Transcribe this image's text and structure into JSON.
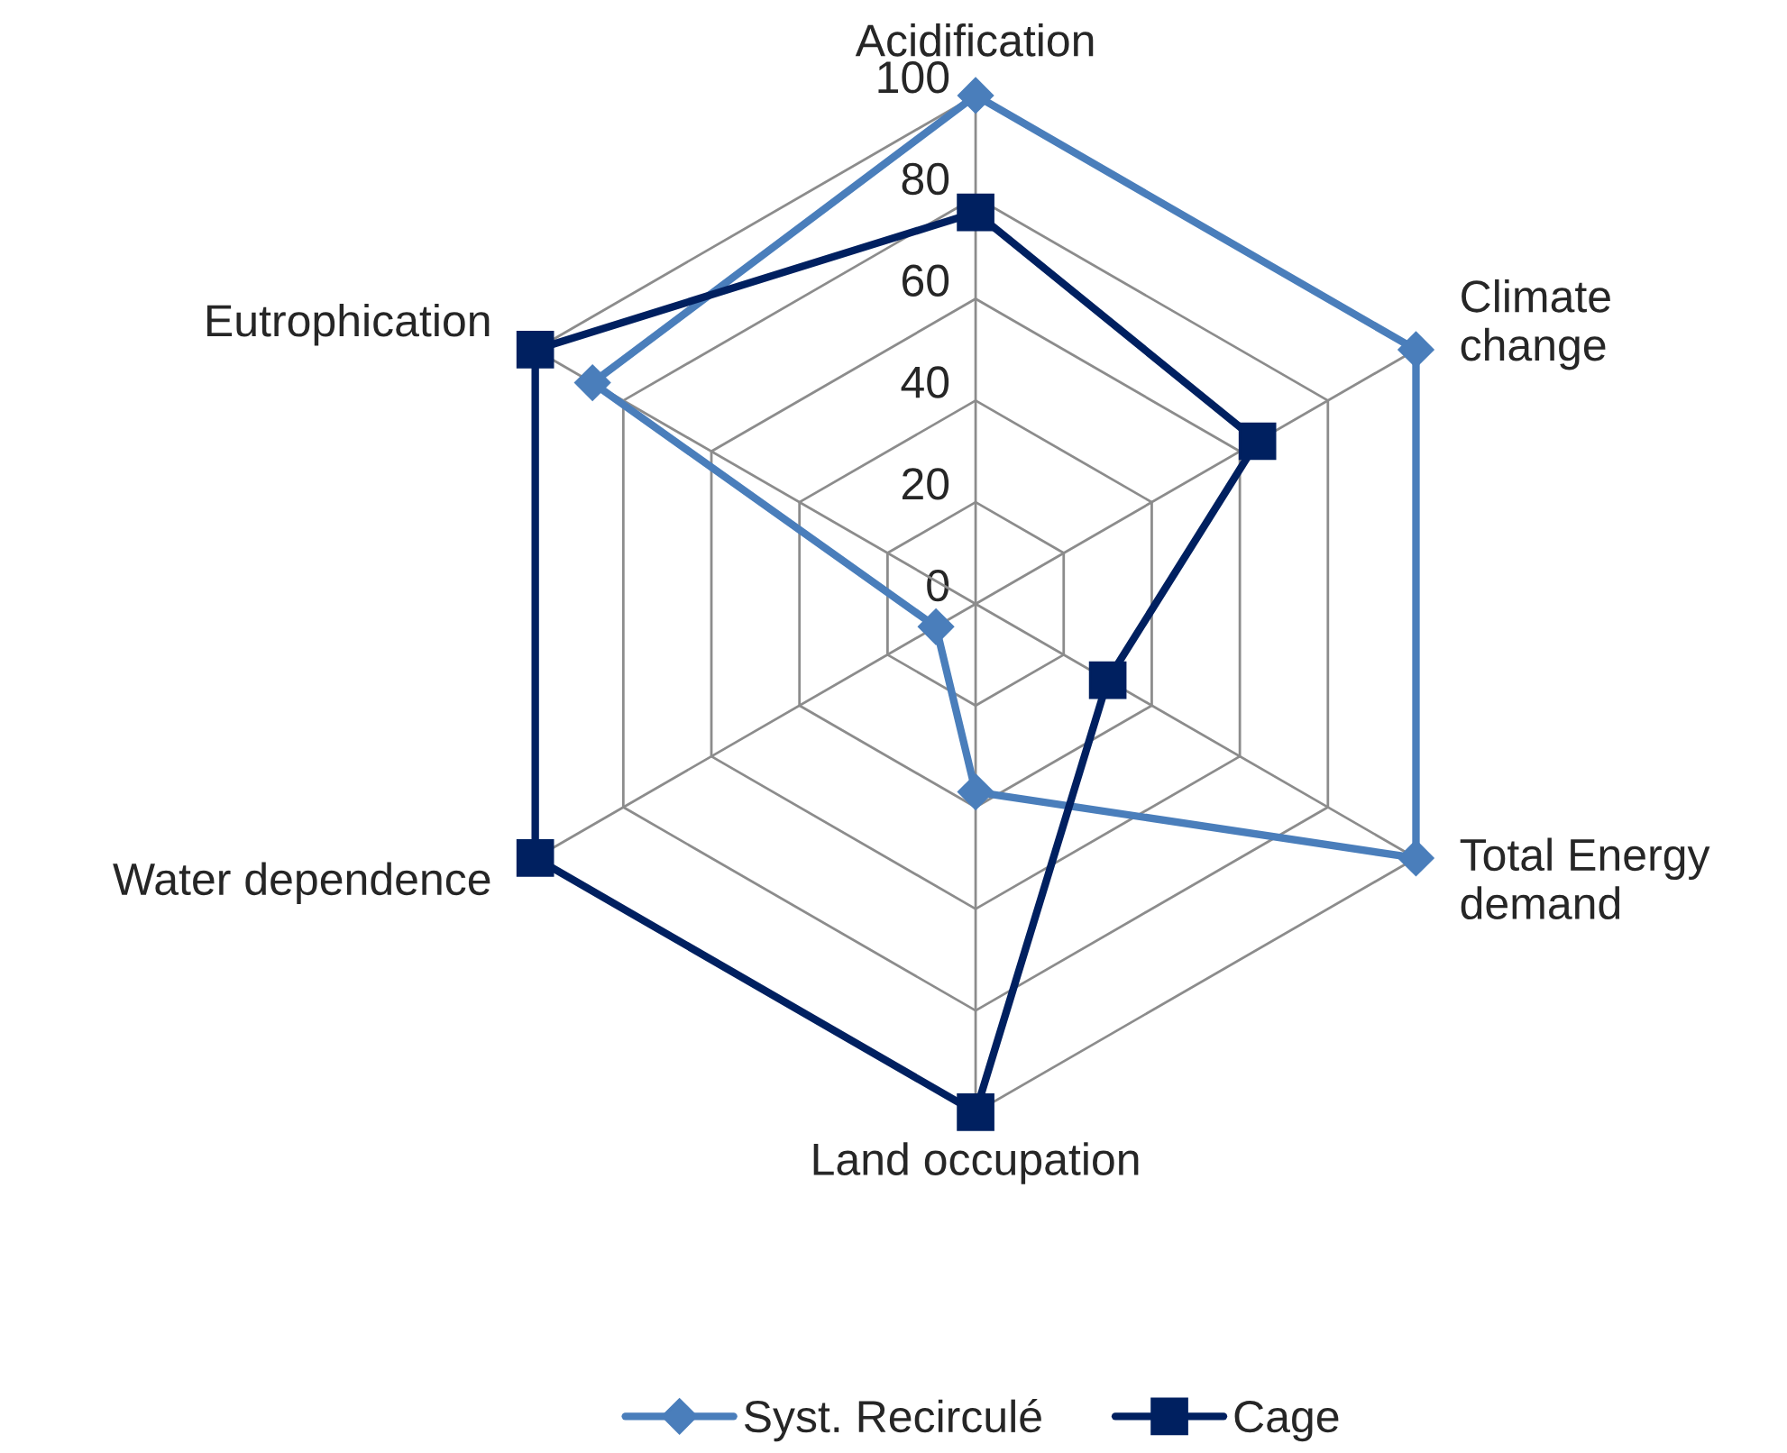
{
  "chart_data": {
    "type": "radar",
    "categories": [
      "Acidification",
      "Climate change",
      "Total Energy demand",
      "Land occupation",
      "Water dependence",
      "Eutrophication"
    ],
    "series": [
      {
        "name": "Syst. Recirculé",
        "color": "#4a7ebb",
        "marker": "diamond",
        "values": [
          100,
          100,
          100,
          37,
          9,
          87
        ]
      },
      {
        "name": "Cage",
        "color": "#002060",
        "marker": "square",
        "values": [
          77,
          64,
          30,
          100,
          100,
          100
        ]
      }
    ],
    "ylim": [
      0,
      100
    ],
    "yticks": [
      0,
      20,
      40,
      60,
      80,
      100
    ],
    "grid": true,
    "legend": "bottom",
    "line_style": "solid"
  }
}
